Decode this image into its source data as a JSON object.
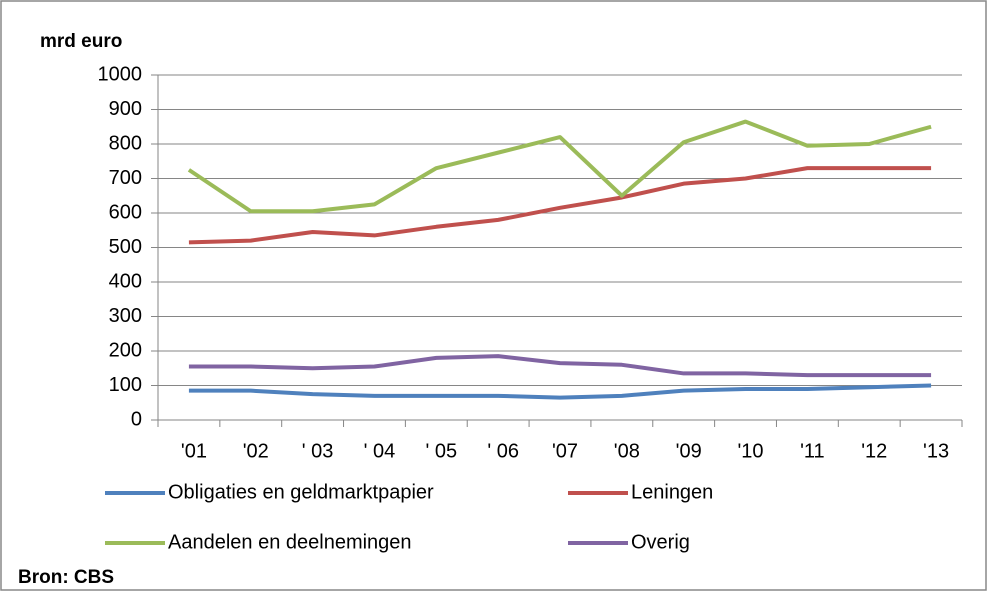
{
  "chart_data": {
    "type": "line",
    "ylabel": "mrd euro",
    "source": "Bron: CBS",
    "categories": [
      "'01",
      "'02",
      "' 03",
      "' 04",
      "' 05",
      "' 06",
      "'07",
      "'08",
      "'09",
      "'10",
      "'11",
      "'12",
      "'13"
    ],
    "series": [
      {
        "name": "Obligaties en geldmarktpapier",
        "color": "#4f81bd",
        "values": [
          85,
          85,
          75,
          70,
          70,
          70,
          65,
          70,
          85,
          90,
          90,
          95,
          100
        ]
      },
      {
        "name": "Leningen",
        "color": "#c0504d",
        "values": [
          515,
          520,
          545,
          535,
          560,
          580,
          615,
          645,
          685,
          700,
          730,
          730,
          730
        ]
      },
      {
        "name": "Aandelen en deelnemingen",
        "color": "#9bbb59",
        "values": [
          725,
          605,
          605,
          625,
          730,
          775,
          820,
          650,
          805,
          865,
          795,
          800,
          850
        ]
      },
      {
        "name": "Overig",
        "color": "#8064a2",
        "values": [
          155,
          155,
          150,
          155,
          180,
          185,
          165,
          160,
          135,
          135,
          130,
          130,
          130
        ]
      }
    ],
    "ylim": [
      0,
      1000
    ],
    "yticks": [
      0,
      100,
      200,
      300,
      400,
      500,
      600,
      700,
      800,
      900,
      1000
    ],
    "grid": true,
    "legend": "bottom"
  }
}
